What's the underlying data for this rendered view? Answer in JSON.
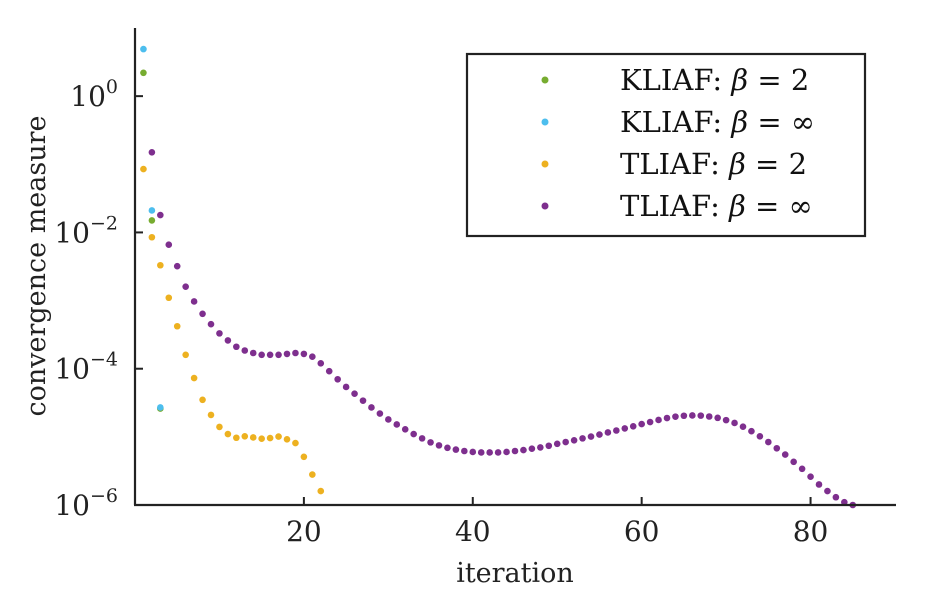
{
  "chart_data": {
    "type": "scatter",
    "title": "",
    "xlabel": "iteration",
    "ylabel": "convergence measure",
    "xlim": [
      0,
      90
    ],
    "ylim": [
      1e-06,
      10
    ],
    "yscale": "log",
    "grid": false,
    "legend_position": "top-right",
    "x_ticks": [
      20,
      40,
      60,
      80
    ],
    "y_ticks": [
      {
        "value": 1,
        "base": "10",
        "exp": "0"
      },
      {
        "value": 0.01,
        "base": "10",
        "exp": "−2"
      },
      {
        "value": 0.0001,
        "base": "10",
        "exp": "−4"
      },
      {
        "value": 1e-06,
        "base": "10",
        "exp": "−6"
      }
    ],
    "series": [
      {
        "name": "KLIAF",
        "beta": "2",
        "color": "#77ac30",
        "x": [
          1,
          2,
          3
        ],
        "y": [
          2.2,
          0.015,
          2.6e-05
        ]
      },
      {
        "name": "KLIAF",
        "beta": "∞",
        "color": "#4dbeee",
        "x": [
          1,
          2,
          3
        ],
        "y": [
          4.9,
          0.021,
          2.7e-05
        ]
      },
      {
        "name": "TLIAF",
        "beta": "2",
        "color": "#edb120",
        "x": [
          1,
          2,
          3,
          4,
          5,
          6,
          7,
          8,
          9,
          10,
          11,
          12,
          13,
          14,
          15,
          16,
          17,
          18,
          19,
          20,
          21,
          22
        ],
        "y": [
          0.085,
          0.0085,
          0.0033,
          0.0011,
          0.00042,
          0.00016,
          7.3e-05,
          3.5e-05,
          2.1e-05,
          1.4e-05,
          1.1e-05,
          9.7e-06,
          1.02e-05,
          9.8e-06,
          9.4e-06,
          9.6e-06,
          1.01e-05,
          9.2e-06,
          8.1e-06,
          5.1e-06,
          2.8e-06,
          1.6e-06
        ]
      },
      {
        "name": "TLIAF",
        "beta": "∞",
        "color": "#7e2f8e",
        "x": [
          2,
          3,
          4,
          5,
          6,
          7,
          8,
          9,
          10,
          11,
          12,
          13,
          14,
          15,
          16,
          17,
          18,
          19,
          20,
          21,
          22,
          23,
          24,
          25,
          26,
          27,
          28,
          29,
          30,
          31,
          32,
          33,
          34,
          35,
          36,
          37,
          38,
          39,
          40,
          41,
          42,
          43,
          44,
          45,
          46,
          47,
          48,
          49,
          50,
          51,
          52,
          53,
          54,
          55,
          56,
          57,
          58,
          59,
          60,
          61,
          62,
          63,
          64,
          65,
          66,
          67,
          68,
          69,
          70,
          71,
          72,
          73,
          74,
          75,
          76,
          77,
          78,
          79,
          80,
          81,
          82,
          83,
          84,
          85
        ],
        "y": [
          0.15,
          0.018,
          0.0066,
          0.0032,
          0.0016,
          0.00097,
          0.00064,
          0.00045,
          0.00033,
          0.00026,
          0.00021,
          0.000185,
          0.00017,
          0.00016,
          0.00016,
          0.00016,
          0.000165,
          0.00017,
          0.000165,
          0.00015,
          0.00012,
          9.2e-05,
          7e-05,
          5.4e-05,
          4.3e-05,
          3.4e-05,
          2.7e-05,
          2.2e-05,
          1.8e-05,
          1.52e-05,
          1.29e-05,
          1.1e-05,
          9.5e-06,
          8.3e-06,
          7.5e-06,
          6.9e-06,
          6.5e-06,
          6.2e-06,
          6e-06,
          5.9e-06,
          5.9e-06,
          5.9e-06,
          6e-06,
          6.2e-06,
          6.4e-06,
          6.7e-06,
          7e-06,
          7.4e-06,
          7.9e-06,
          8.4e-06,
          8.9e-06,
          9.5e-06,
          1.01e-05,
          1.08e-05,
          1.16e-05,
          1.24e-05,
          1.33e-05,
          1.43e-05,
          1.54e-05,
          1.65e-05,
          1.77e-05,
          1.89e-05,
          1.98e-05,
          2.04e-05,
          2.06e-05,
          2.05e-05,
          1.99e-05,
          1.9e-05,
          1.76e-05,
          1.6e-05,
          1.41e-05,
          1.21e-05,
          1.02e-05,
          8.4e-06,
          6.8e-06,
          5.5e-06,
          4.3e-06,
          3.4e-06,
          2.6e-06,
          2e-06,
          1.6e-06,
          1.3e-06,
          1.1e-06,
          1e-06
        ]
      }
    ]
  }
}
